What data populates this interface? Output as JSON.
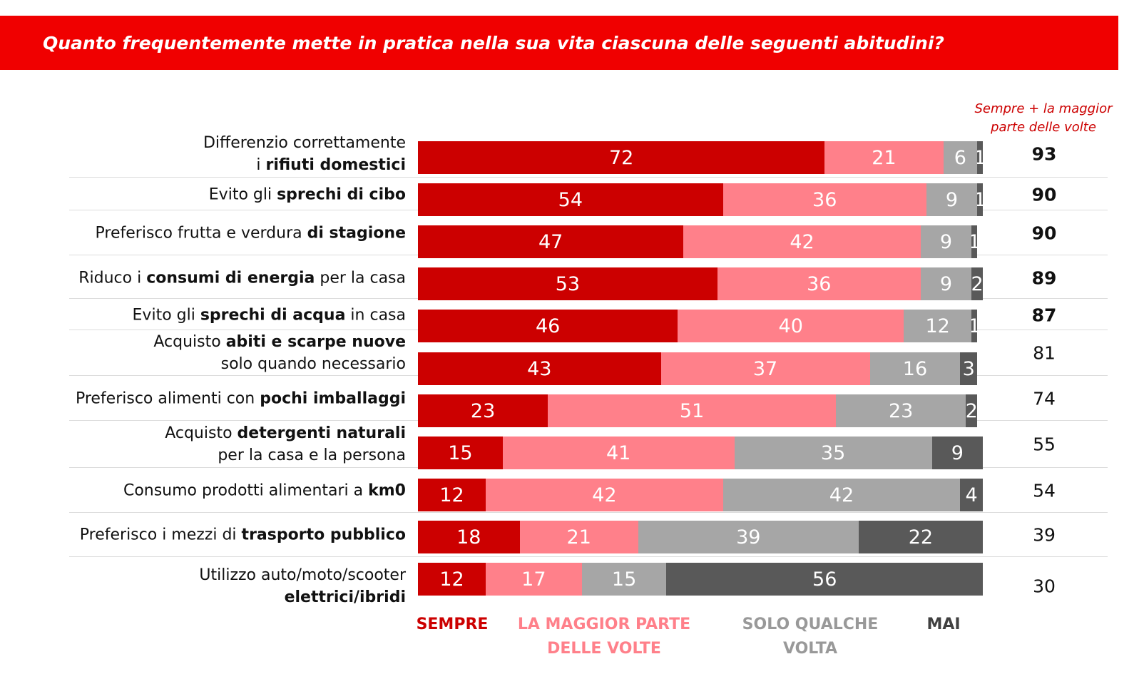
{
  "chart_data": {
    "type": "stacked-bar",
    "title": "Quanto frequentemente mette in pratica nella sua vita ciascuna delle seguenti abitudini?",
    "categories": [
      [
        [
          {
            "text": "Differenzio correttamente",
            "bold": false
          }
        ],
        [
          {
            "text": "i ",
            "bold": false
          },
          {
            "text": "rifiuti domestici",
            "bold": true
          }
        ]
      ],
      [
        [
          {
            "text": "Evito gli ",
            "bold": false
          },
          {
            "text": "sprechi di cibo",
            "bold": true
          }
        ]
      ],
      [
        [
          {
            "text": "Preferisco frutta e verdura ",
            "bold": false
          },
          {
            "text": "di stagione",
            "bold": true
          }
        ]
      ],
      [
        [
          {
            "text": "Riduco i ",
            "bold": false
          },
          {
            "text": "consumi di energia",
            "bold": true
          },
          {
            "text": " per la casa",
            "bold": false
          }
        ]
      ],
      [
        [
          {
            "text": "Evito gli ",
            "bold": false
          },
          {
            "text": "sprechi di acqua",
            "bold": true
          },
          {
            "text": " in casa",
            "bold": false
          }
        ]
      ],
      [
        [
          {
            "text": "Acquisto ",
            "bold": false
          },
          {
            "text": "abiti e scarpe nuove",
            "bold": true
          }
        ],
        [
          {
            "text": "solo quando necessario",
            "bold": false
          }
        ]
      ],
      [
        [
          {
            "text": "Preferisco alimenti con ",
            "bold": false
          },
          {
            "text": "pochi imballaggi",
            "bold": true
          }
        ]
      ],
      [
        [
          {
            "text": "Acquisto ",
            "bold": false
          },
          {
            "text": "detergenti naturali",
            "bold": true
          }
        ],
        [
          {
            "text": "per la casa e la persona",
            "bold": false
          }
        ]
      ],
      [
        [
          {
            "text": "Consumo prodotti alimentari a ",
            "bold": false
          },
          {
            "text": "km0",
            "bold": true
          }
        ]
      ],
      [
        [
          {
            "text": "Preferisco i mezzi di ",
            "bold": false
          },
          {
            "text": "trasporto pubblico",
            "bold": true
          }
        ]
      ],
      [
        [
          {
            "text": "Utilizzo auto/moto/scooter",
            "bold": false
          }
        ],
        [
          {
            "text": "elettrici/ibridi",
            "bold": true
          }
        ]
      ]
    ],
    "series": [
      {
        "name": "SEMPRE",
        "color": "#cc0000",
        "values": [
          72,
          54,
          47,
          53,
          46,
          43,
          23,
          15,
          12,
          18,
          12
        ]
      },
      {
        "name": "LA MAGGIOR PARTE DELLE VOLTE",
        "color": "#ff808a",
        "values": [
          21,
          36,
          42,
          36,
          40,
          37,
          51,
          41,
          42,
          21,
          17
        ]
      },
      {
        "name": "SOLO QUALCHE VOLTA",
        "color": "#a6a6a6",
        "values": [
          6,
          9,
          9,
          9,
          12,
          16,
          23,
          35,
          42,
          39,
          15
        ]
      },
      {
        "name": "MAI",
        "color": "#595959",
        "values": [
          1,
          1,
          1,
          2,
          1,
          3,
          2,
          9,
          4,
          22,
          56
        ]
      }
    ],
    "xlim": [
      0,
      100
    ],
    "totals": {
      "title": "Sempre + la maggior parte delle volte",
      "values": [
        93,
        90,
        90,
        89,
        87,
        81,
        74,
        55,
        54,
        39,
        30
      ],
      "bold": [
        true,
        true,
        true,
        true,
        true,
        false,
        false,
        false,
        false,
        false,
        false
      ]
    }
  }
}
